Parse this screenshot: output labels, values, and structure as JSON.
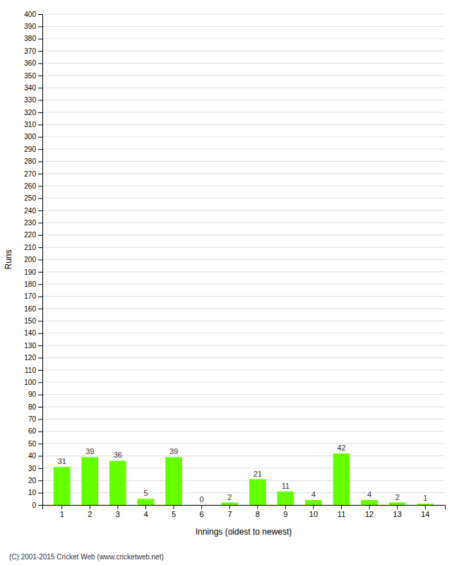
{
  "chart_data": {
    "type": "bar",
    "categories": [
      "1",
      "2",
      "3",
      "4",
      "5",
      "6",
      "7",
      "8",
      "9",
      "10",
      "11",
      "12",
      "13",
      "14"
    ],
    "values": [
      31,
      39,
      36,
      5,
      39,
      0,
      2,
      21,
      11,
      4,
      42,
      4,
      2,
      1
    ],
    "color": "#66ff00",
    "x_label": "Innings (oldest to newest)",
    "y_label": "Runs",
    "ylim": [
      0,
      400
    ],
    "yticks": [
      0,
      10,
      20,
      30,
      40,
      50,
      60,
      70,
      80,
      90,
      100,
      110,
      120,
      130,
      140,
      150,
      160,
      170,
      180,
      190,
      200,
      210,
      220,
      230,
      240,
      250,
      260,
      270,
      280,
      290,
      300,
      310,
      320,
      330,
      340,
      350,
      360,
      370,
      380,
      390,
      400
    ],
    "grid": true,
    "data_labels": true,
    "annotations": [
      "(C) 2001-2015 Cricket Web (www.cricketweb.net)"
    ]
  }
}
